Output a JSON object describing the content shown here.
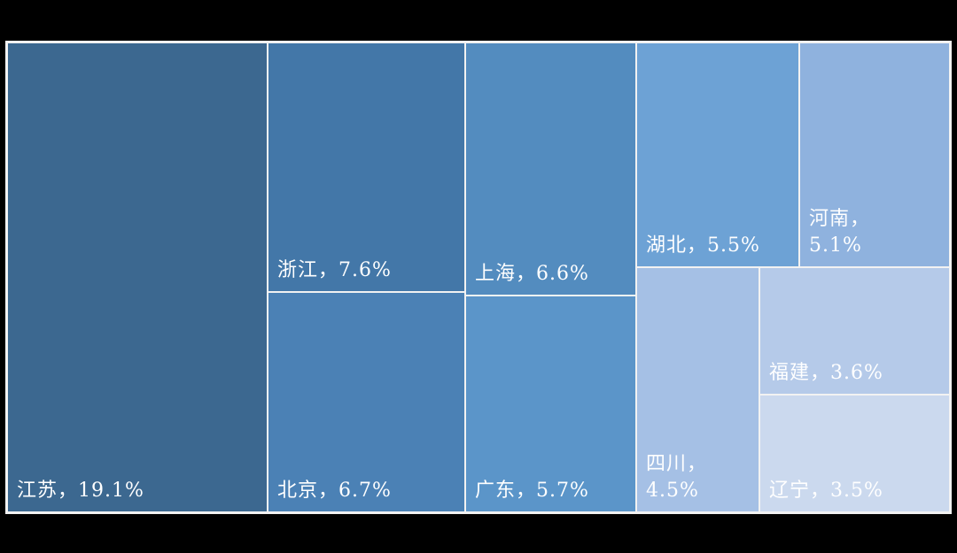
{
  "page": {
    "background_color": "#000000",
    "gridline_color": "#f2f2f2",
    "label_text_color": "#ffffff"
  },
  "chart_data": {
    "type": "treemap",
    "title": "",
    "unit": "%",
    "legend": "none",
    "items": [
      {
        "name": "江苏",
        "value": 19.1,
        "label": "江苏，19.1%",
        "color": "#3C6890"
      },
      {
        "name": "浙江",
        "value": 7.6,
        "label": "浙江，7.6%",
        "color": "#4377A8"
      },
      {
        "name": "北京",
        "value": 6.7,
        "label": "北京，6.7%",
        "color": "#4B81B5"
      },
      {
        "name": "上海",
        "value": 6.6,
        "label": "上海，6.6%",
        "color": "#538CBF"
      },
      {
        "name": "广东",
        "value": 5.7,
        "label": "广东，5.7%",
        "color": "#5B95C9"
      },
      {
        "name": "湖北",
        "value": 5.5,
        "label": "湖北，5.5%",
        "color": "#6DA2D5"
      },
      {
        "name": "河南",
        "value": 5.1,
        "label_line1": "河南，",
        "label_line2": "5.1%",
        "color": "#8FB2DE"
      },
      {
        "name": "四川",
        "value": 4.5,
        "label_line1": "四川，",
        "label_line2": "4.5%",
        "color": "#A5C0E5"
      },
      {
        "name": "福建",
        "value": 3.6,
        "label": "福建，3.6%",
        "color": "#B5CAE9"
      },
      {
        "name": "辽宁",
        "value": 3.5,
        "label": "辽宁，3.5%",
        "color": "#CBD9EE"
      }
    ]
  }
}
